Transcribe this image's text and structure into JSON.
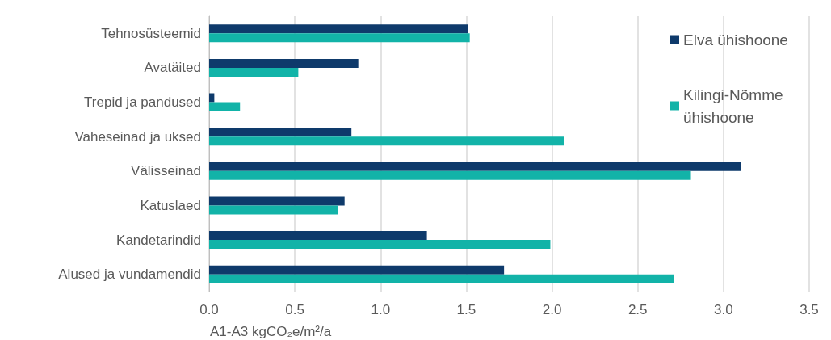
{
  "chart_data": {
    "type": "bar",
    "orientation": "horizontal",
    "xlabel": "A1-A3 kgCO₂e/m²/a",
    "categories": [
      "Tehnosüsteemid",
      "Avatäited",
      "Trepid ja pandused",
      "Vaheseinad ja uksed",
      "Välisseinad",
      "Katuslaed",
      "Kandetarindid",
      "Alused ja vundamendid"
    ],
    "series": [
      {
        "name": "Elva ühishoone",
        "color": "#0e3a6b",
        "values": [
          1.51,
          0.87,
          0.03,
          0.83,
          3.1,
          0.79,
          1.27,
          1.72
        ]
      },
      {
        "name": "Kilingi-Nõmme ühishoone",
        "color": "#12b3a8",
        "values": [
          1.52,
          0.52,
          0.18,
          2.07,
          2.81,
          0.75,
          1.99,
          2.71
        ]
      }
    ],
    "xlim": [
      0,
      3.5
    ],
    "xticks": [
      {
        "value": 0,
        "label": "0.0"
      },
      {
        "value": 0.5,
        "label": "0.5"
      },
      {
        "value": 1,
        "label": "1.0"
      },
      {
        "value": 1.5,
        "label": "1.5"
      },
      {
        "value": 2,
        "label": "2.0"
      },
      {
        "value": 2.5,
        "label": "2.5"
      },
      {
        "value": 3,
        "label": "3.0"
      },
      {
        "value": 3.5,
        "label": "3.5"
      }
    ],
    "grid": "x",
    "legend": "top right"
  }
}
